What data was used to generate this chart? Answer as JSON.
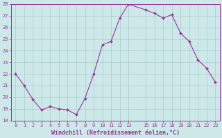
{
  "x": [
    0,
    1,
    2,
    3,
    4,
    5,
    6,
    7,
    8,
    9,
    10,
    11,
    12,
    13,
    15,
    16,
    17,
    18,
    19,
    20,
    21,
    22,
    23
  ],
  "y": [
    22.0,
    21.0,
    19.8,
    18.9,
    19.2,
    19.0,
    18.9,
    18.5,
    19.9,
    22.0,
    24.5,
    24.8,
    26.8,
    28.0,
    27.5,
    27.2,
    26.8,
    27.1,
    25.5,
    24.8,
    23.2,
    22.5,
    21.3
  ],
  "line_color": "#993399",
  "marker_color": "#993399",
  "bg_color": "#cce8e8",
  "grid_color": "#aacccc",
  "xlabel": "Windchill (Refroidissement éolien,°C)",
  "xlabel_color": "#993399",
  "tick_color": "#993399",
  "spine_color": "#993399",
  "ylim": [
    18,
    28
  ],
  "xlim": [
    -0.5,
    23.5
  ],
  "yticks": [
    18,
    19,
    20,
    21,
    22,
    23,
    24,
    25,
    26,
    27,
    28
  ],
  "xticks": [
    0,
    1,
    2,
    3,
    4,
    5,
    6,
    7,
    8,
    9,
    10,
    11,
    12,
    13,
    15,
    16,
    17,
    18,
    19,
    20,
    21,
    22,
    23
  ],
  "tick_labelsize": 5,
  "xlabel_fontsize": 6,
  "ylabel_fontsize": 6,
  "marker_size": 2.0,
  "line_width": 0.8
}
